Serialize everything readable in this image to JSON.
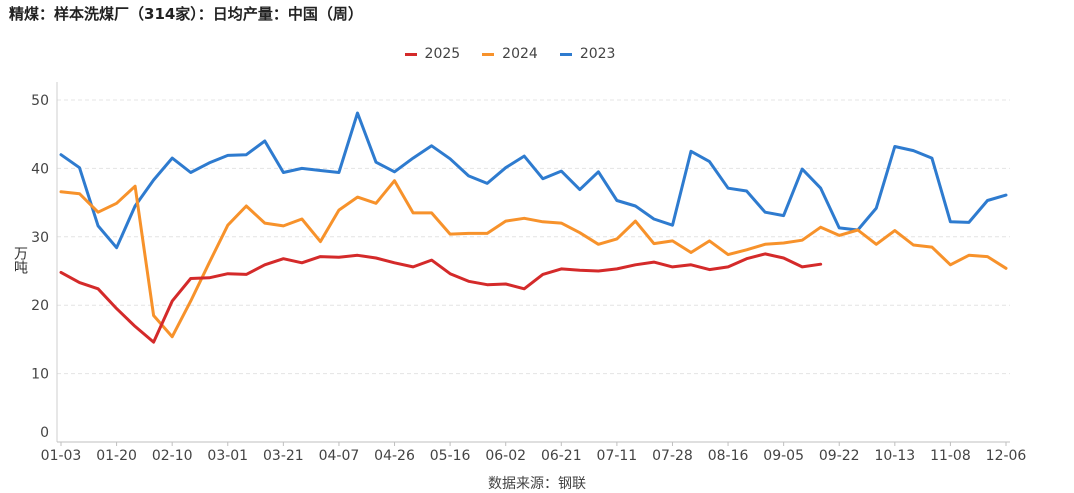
{
  "chart_data": {
    "type": "line",
    "title": "精煤：样本洗煤厂（314家）：日均产量：中国（周）",
    "ylabel": "万吨",
    "xlabel": "",
    "source": "数据来源：钢联",
    "ylim": [
      0,
      50
    ],
    "yticks": [
      0,
      10,
      20,
      30,
      40,
      50
    ],
    "x_tick_labels": [
      "01-03",
      "01-20",
      "02-10",
      "03-01",
      "03-21",
      "04-07",
      "04-26",
      "05-16",
      "06-02",
      "06-21",
      "07-11",
      "07-28",
      "08-16",
      "09-05",
      "09-22",
      "10-13",
      "11-08",
      "12-06"
    ],
    "legend_position": "top-center",
    "series": [
      {
        "name": "2025",
        "color": "#d42a2a",
        "values": [
          24.8,
          23.3,
          22.4,
          19.5,
          16.9,
          14.6,
          20.6,
          23.9,
          24.0,
          24.6,
          24.5,
          25.9,
          26.8,
          26.2,
          27.1,
          27.0,
          27.3,
          26.9,
          26.2,
          25.6,
          26.6,
          24.6,
          23.5,
          23.0,
          23.1,
          22.4,
          24.5,
          25.3,
          25.1,
          25.0,
          25.3,
          25.9,
          26.3,
          25.6,
          25.9,
          25.2,
          25.6,
          26.8,
          27.5,
          26.9,
          25.6,
          26.0
        ]
      },
      {
        "name": "2024",
        "color": "#f7922b",
        "values": [
          36.6,
          36.3,
          33.6,
          34.9,
          37.4,
          18.5,
          15.4,
          20.6,
          26.2,
          31.7,
          34.5,
          32.0,
          31.6,
          32.6,
          29.3,
          33.9,
          35.8,
          34.9,
          38.2,
          33.5,
          33.5,
          30.4,
          30.5,
          30.5,
          32.3,
          32.7,
          32.2,
          32.0,
          30.6,
          28.9,
          29.7,
          32.3,
          29.0,
          29.4,
          27.7,
          29.4,
          27.4,
          28.1,
          28.9,
          29.1,
          29.5,
          31.4,
          30.2,
          31.0,
          28.9,
          30.9,
          28.8,
          28.5,
          25.9,
          27.3,
          27.1,
          25.4
        ]
      },
      {
        "name": "2023",
        "color": "#2e7bcf",
        "values": [
          42.0,
          40.1,
          31.6,
          28.4,
          34.5,
          38.3,
          41.5,
          39.4,
          40.8,
          41.9,
          42.0,
          44.0,
          39.4,
          40.0,
          39.7,
          39.4,
          48.1,
          40.9,
          39.5,
          41.5,
          43.3,
          41.4,
          38.9,
          37.8,
          40.1,
          41.8,
          38.5,
          39.6,
          36.9,
          39.5,
          35.3,
          34.5,
          32.6,
          31.7,
          42.5,
          41.0,
          37.1,
          36.7,
          33.6,
          33.1,
          39.9,
          37.1,
          31.3,
          31.0,
          34.2,
          43.2,
          42.6,
          41.5,
          32.2,
          32.1,
          35.3,
          36.1
        ]
      }
    ]
  }
}
